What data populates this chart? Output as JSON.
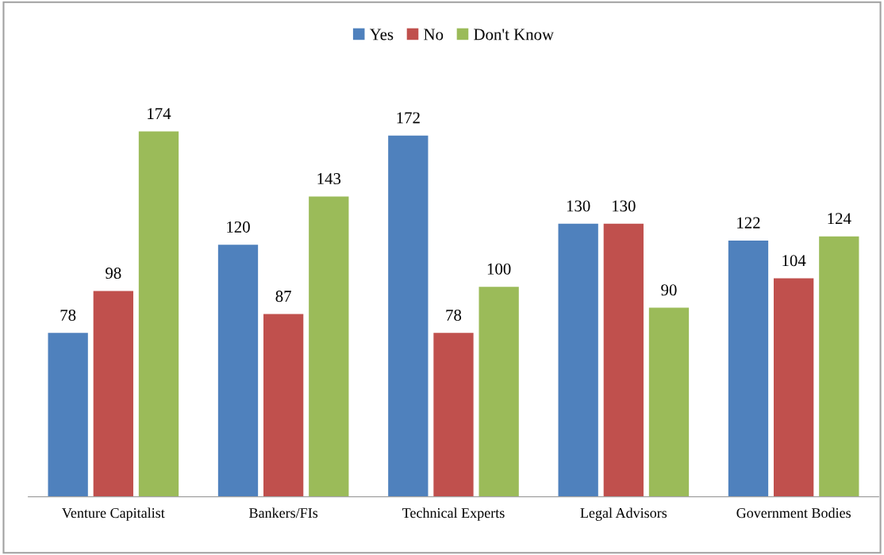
{
  "chart_data": {
    "type": "bar",
    "categories": [
      "Venture Capitalist",
      "Bankers/FIs",
      "Technical Experts",
      "Legal Advisors",
      "Government Bodies"
    ],
    "series": [
      {
        "name": "Yes",
        "color": "#4f81bd",
        "values": [
          78,
          120,
          172,
          130,
          122
        ]
      },
      {
        "name": "No",
        "color": "#c0504d",
        "values": [
          98,
          87,
          78,
          130,
          104
        ]
      },
      {
        "name": "Don't Know",
        "color": "#9bbb59",
        "values": [
          174,
          143,
          100,
          90,
          124
        ]
      }
    ],
    "data_labels": true,
    "legend": "top",
    "grid": false,
    "tick_labels": "x"
  }
}
